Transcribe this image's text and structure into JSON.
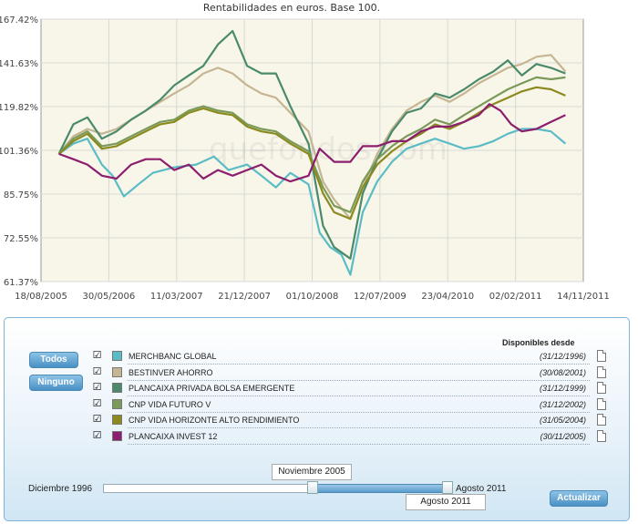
{
  "chart_data": {
    "type": "line",
    "title": "Rentabilidades en euros. Base 100.",
    "watermark": "quefondos.com",
    "x_ticks": [
      "18/08/2005",
      "30/05/2006",
      "11/03/2007",
      "21/12/2007",
      "01/10/2008",
      "12/07/2009",
      "23/04/2010",
      "02/02/2011",
      "14/11/2011"
    ],
    "x_range": [
      "2005-08-18",
      "2011-11-14"
    ],
    "y_ticks": [
      "61.37%",
      "72.55%",
      "85.75%",
      "101.36%",
      "119.82%",
      "141.63%",
      "167.42%"
    ],
    "y_tick_values": [
      61.37,
      72.55,
      85.75,
      101.36,
      119.82,
      141.63,
      167.42
    ],
    "y_range": [
      61.37,
      167.42
    ],
    "y_scale": "log",
    "grid": true,
    "plot_background": "#f8f6e9",
    "grid_color": "#d8d8d8",
    "series": [
      {
        "name": "MERCHBANC GLOBAL",
        "color": "#5bbcc6",
        "points": [
          [
            "2005-11-01",
            100
          ],
          [
            "2006-01-01",
            104
          ],
          [
            "2006-03-01",
            106
          ],
          [
            "2006-05-01",
            96
          ],
          [
            "2006-06-15",
            92
          ],
          [
            "2006-08-01",
            85
          ],
          [
            "2006-10-01",
            89
          ],
          [
            "2006-12-01",
            93
          ],
          [
            "2007-03-01",
            95
          ],
          [
            "2007-06-01",
            96
          ],
          [
            "2007-08-15",
            99
          ],
          [
            "2007-10-15",
            94
          ],
          [
            "2008-01-01",
            96
          ],
          [
            "2008-03-01",
            92
          ],
          [
            "2008-05-01",
            88
          ],
          [
            "2008-07-01",
            93
          ],
          [
            "2008-09-15",
            89
          ],
          [
            "2008-11-01",
            74
          ],
          [
            "2008-12-15",
            70
          ],
          [
            "2009-02-01",
            68
          ],
          [
            "2009-03-10",
            63
          ],
          [
            "2009-05-01",
            80
          ],
          [
            "2009-07-01",
            90
          ],
          [
            "2009-09-01",
            97
          ],
          [
            "2009-11-01",
            102
          ],
          [
            "2010-01-01",
            104
          ],
          [
            "2010-03-01",
            106
          ],
          [
            "2010-05-01",
            104
          ],
          [
            "2010-07-01",
            102
          ],
          [
            "2010-09-01",
            103
          ],
          [
            "2010-11-01",
            105
          ],
          [
            "2011-01-01",
            108
          ],
          [
            "2011-03-01",
            110
          ],
          [
            "2011-05-01",
            110
          ],
          [
            "2011-07-01",
            109
          ],
          [
            "2011-08-31",
            104
          ]
        ]
      },
      {
        "name": "BESTINVER AHORRO",
        "color": "#c5b592",
        "points": [
          [
            "2005-11-01",
            100
          ],
          [
            "2006-01-01",
            107
          ],
          [
            "2006-03-01",
            110
          ],
          [
            "2006-05-01",
            108
          ],
          [
            "2006-07-01",
            110
          ],
          [
            "2006-09-01",
            114
          ],
          [
            "2006-11-01",
            118
          ],
          [
            "2007-01-01",
            122
          ],
          [
            "2007-03-01",
            126
          ],
          [
            "2007-05-01",
            130
          ],
          [
            "2007-07-01",
            136
          ],
          [
            "2007-09-01",
            139
          ],
          [
            "2007-11-01",
            136
          ],
          [
            "2008-01-01",
            130
          ],
          [
            "2008-03-01",
            126
          ],
          [
            "2008-05-01",
            124
          ],
          [
            "2008-07-01",
            117
          ],
          [
            "2008-09-15",
            109
          ],
          [
            "2008-11-15",
            90
          ],
          [
            "2009-01-01",
            84
          ],
          [
            "2009-03-10",
            78
          ],
          [
            "2009-05-01",
            88
          ],
          [
            "2009-07-01",
            100
          ],
          [
            "2009-09-01",
            110
          ],
          [
            "2009-11-01",
            118
          ],
          [
            "2010-01-01",
            122
          ],
          [
            "2010-03-01",
            125
          ],
          [
            "2010-05-01",
            122
          ],
          [
            "2010-07-01",
            126
          ],
          [
            "2010-09-01",
            131
          ],
          [
            "2010-11-01",
            135
          ],
          [
            "2011-01-01",
            139
          ],
          [
            "2011-03-01",
            141
          ],
          [
            "2011-05-01",
            145
          ],
          [
            "2011-07-01",
            146
          ],
          [
            "2011-08-31",
            137
          ]
        ]
      },
      {
        "name": "PLANCAIXA PRIVADA BOLSA EMERGENTE",
        "color": "#4a8a6a",
        "points": [
          [
            "2005-11-01",
            100
          ],
          [
            "2006-01-01",
            112
          ],
          [
            "2006-03-01",
            115
          ],
          [
            "2006-05-01",
            106
          ],
          [
            "2006-07-01",
            109
          ],
          [
            "2006-09-01",
            114
          ],
          [
            "2006-11-01",
            118
          ],
          [
            "2007-01-01",
            123
          ],
          [
            "2007-03-01",
            130
          ],
          [
            "2007-05-01",
            135
          ],
          [
            "2007-07-01",
            140
          ],
          [
            "2007-09-01",
            152
          ],
          [
            "2007-11-01",
            160
          ],
          [
            "2008-01-01",
            140
          ],
          [
            "2008-03-01",
            136
          ],
          [
            "2008-05-01",
            136
          ],
          [
            "2008-07-01",
            120
          ],
          [
            "2008-09-15",
            104
          ],
          [
            "2008-11-15",
            76
          ],
          [
            "2009-01-01",
            70
          ],
          [
            "2009-03-10",
            67
          ],
          [
            "2009-05-01",
            86
          ],
          [
            "2009-07-01",
            98
          ],
          [
            "2009-09-01",
            109
          ],
          [
            "2009-11-01",
            117
          ],
          [
            "2010-01-01",
            119
          ],
          [
            "2010-03-01",
            126
          ],
          [
            "2010-05-01",
            124
          ],
          [
            "2010-07-01",
            128
          ],
          [
            "2010-09-01",
            133
          ],
          [
            "2010-11-01",
            137
          ],
          [
            "2011-01-01",
            143
          ],
          [
            "2011-03-01",
            135
          ],
          [
            "2011-05-01",
            141
          ],
          [
            "2011-07-01",
            139
          ],
          [
            "2011-08-31",
            136
          ]
        ]
      },
      {
        "name": "CNP VIDA FUTURO V",
        "color": "#7a9a5a",
        "points": [
          [
            "2005-11-01",
            100
          ],
          [
            "2006-01-01",
            106
          ],
          [
            "2006-03-01",
            109
          ],
          [
            "2006-05-01",
            103
          ],
          [
            "2006-07-01",
            104
          ],
          [
            "2006-09-01",
            107
          ],
          [
            "2006-11-01",
            110
          ],
          [
            "2007-01-01",
            113
          ],
          [
            "2007-03-01",
            114
          ],
          [
            "2007-05-01",
            118
          ],
          [
            "2007-07-01",
            120
          ],
          [
            "2007-09-01",
            118
          ],
          [
            "2007-11-01",
            117
          ],
          [
            "2008-01-01",
            112
          ],
          [
            "2008-03-01",
            110
          ],
          [
            "2008-05-01",
            109
          ],
          [
            "2008-07-01",
            105
          ],
          [
            "2008-09-15",
            101
          ],
          [
            "2008-11-15",
            88
          ],
          [
            "2009-01-01",
            82
          ],
          [
            "2009-03-10",
            80
          ],
          [
            "2009-05-01",
            90
          ],
          [
            "2009-07-01",
            98
          ],
          [
            "2009-09-01",
            103
          ],
          [
            "2009-11-01",
            107
          ],
          [
            "2010-01-01",
            110
          ],
          [
            "2010-03-01",
            114
          ],
          [
            "2010-05-01",
            112
          ],
          [
            "2010-07-01",
            116
          ],
          [
            "2010-09-01",
            120
          ],
          [
            "2010-11-01",
            124
          ],
          [
            "2011-01-01",
            128
          ],
          [
            "2011-03-01",
            131
          ],
          [
            "2011-05-01",
            134
          ],
          [
            "2011-07-01",
            133
          ],
          [
            "2011-08-31",
            134
          ]
        ]
      },
      {
        "name": "CNP VIDA HORIZONTE ALTO RENDIMIENTO",
        "color": "#8c8a1e",
        "points": [
          [
            "2005-11-01",
            100
          ],
          [
            "2006-01-01",
            105
          ],
          [
            "2006-03-01",
            108
          ],
          [
            "2006-05-01",
            102
          ],
          [
            "2006-07-01",
            103
          ],
          [
            "2006-09-01",
            106
          ],
          [
            "2006-11-01",
            109
          ],
          [
            "2007-01-01",
            112
          ],
          [
            "2007-03-01",
            113
          ],
          [
            "2007-05-01",
            117
          ],
          [
            "2007-07-01",
            119
          ],
          [
            "2007-09-01",
            117
          ],
          [
            "2007-11-01",
            116
          ],
          [
            "2008-01-01",
            111
          ],
          [
            "2008-03-01",
            109
          ],
          [
            "2008-05-01",
            108
          ],
          [
            "2008-07-01",
            104
          ],
          [
            "2008-09-15",
            100
          ],
          [
            "2008-11-15",
            86
          ],
          [
            "2009-01-01",
            80
          ],
          [
            "2009-03-10",
            78
          ],
          [
            "2009-05-01",
            88
          ],
          [
            "2009-07-01",
            96
          ],
          [
            "2009-09-01",
            101
          ],
          [
            "2009-11-01",
            105
          ],
          [
            "2010-01-01",
            108
          ],
          [
            "2010-03-01",
            112
          ],
          [
            "2010-05-01",
            110
          ],
          [
            "2010-07-01",
            113
          ],
          [
            "2010-09-01",
            117
          ],
          [
            "2010-11-01",
            121
          ],
          [
            "2011-01-01",
            124
          ],
          [
            "2011-03-01",
            127
          ],
          [
            "2011-05-01",
            129
          ],
          [
            "2011-07-01",
            128
          ],
          [
            "2011-08-31",
            125
          ]
        ]
      },
      {
        "name": "PLANCAIXA INVEST 12",
        "color": "#8c1e6e",
        "points": [
          [
            "2005-11-01",
            100
          ],
          [
            "2006-01-01",
            98
          ],
          [
            "2006-03-01",
            96
          ],
          [
            "2006-05-01",
            92
          ],
          [
            "2006-07-01",
            91
          ],
          [
            "2006-09-01",
            96
          ],
          [
            "2006-11-01",
            98
          ],
          [
            "2007-01-01",
            98
          ],
          [
            "2007-03-01",
            94
          ],
          [
            "2007-05-01",
            96
          ],
          [
            "2007-07-01",
            91
          ],
          [
            "2007-09-01",
            94
          ],
          [
            "2007-11-01",
            92
          ],
          [
            "2008-01-01",
            94
          ],
          [
            "2008-03-01",
            96
          ],
          [
            "2008-05-01",
            92
          ],
          [
            "2008-07-01",
            90
          ],
          [
            "2008-09-15",
            92
          ],
          [
            "2008-11-01",
            102
          ],
          [
            "2009-01-01",
            97
          ],
          [
            "2009-03-10",
            97
          ],
          [
            "2009-05-01",
            103
          ],
          [
            "2009-07-01",
            103
          ],
          [
            "2009-09-01",
            105
          ],
          [
            "2009-11-01",
            105
          ],
          [
            "2010-01-01",
            109
          ],
          [
            "2010-03-01",
            111
          ],
          [
            "2010-05-01",
            111
          ],
          [
            "2010-07-01",
            113
          ],
          [
            "2010-09-01",
            116
          ],
          [
            "2010-10-15",
            121
          ],
          [
            "2010-12-01",
            118
          ],
          [
            "2011-01-15",
            112
          ],
          [
            "2011-03-01",
            109
          ],
          [
            "2011-05-01",
            110
          ],
          [
            "2011-07-01",
            113
          ],
          [
            "2011-08-31",
            116
          ]
        ]
      }
    ]
  },
  "panel": {
    "btn_todos": "Todos",
    "btn_ninguno": "Ninguno",
    "btn_actualizar": "Actualizar",
    "disponibles_header": "Disponibles desde",
    "funds": [
      {
        "checked": true,
        "name": "MERCHBANC GLOBAL",
        "date": "(31/12/1996)",
        "color": "#5bbcc6"
      },
      {
        "checked": true,
        "name": "BESTINVER AHORRO",
        "date": "(30/08/2001)",
        "color": "#c5b592"
      },
      {
        "checked": true,
        "name": "PLANCAIXA PRIVADA BOLSA EMERGENTE",
        "date": "(31/12/1999)",
        "color": "#4a8a6a"
      },
      {
        "checked": true,
        "name": "CNP VIDA FUTURO V",
        "date": "(31/12/2002)",
        "color": "#7a9a5a"
      },
      {
        "checked": true,
        "name": "CNP VIDA HORIZONTE ALTO RENDIMIENTO",
        "date": "(31/05/2004)",
        "color": "#8c8a1e"
      },
      {
        "checked": true,
        "name": "PLANCAIXA INVEST 12",
        "date": "(30/11/2005)",
        "color": "#8c1e6e"
      }
    ],
    "slider": {
      "min_label": "Diciembre 1996",
      "max_label": "Agosto 2011",
      "range_start": "Noviembre 2005",
      "range_end": "Agosto 2011"
    }
  }
}
